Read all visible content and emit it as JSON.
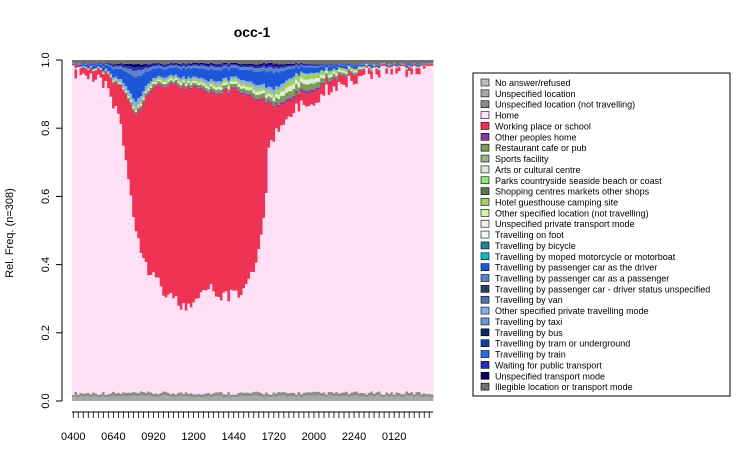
{
  "chart_data": {
    "type": "area",
    "stacked": true,
    "normalized": true,
    "title": "occ-1",
    "xlabel": "",
    "ylabel": "Rel. Freq. (n=308)",
    "ylim": [
      0,
      1
    ],
    "y_ticks": [
      "0.0",
      "0.2",
      "0.4",
      "0.6",
      "0.8",
      "1.0"
    ],
    "x_tick_labels": [
      "0400",
      "0640",
      "0920",
      "1200",
      "1440",
      "1720",
      "2000",
      "2240",
      "0120"
    ],
    "x_start": "0400",
    "x_interval_minutes": 10,
    "legend_position": "right",
    "legend": [
      {
        "label": "No answer/refused",
        "color": "#bdbdbd"
      },
      {
        "label": "Unspecified location",
        "color": "#a8a8a8"
      },
      {
        "label": "Unspecified location (not travelling)",
        "color": "#8c8c8c"
      },
      {
        "label": "Home",
        "color": "#ffdff5"
      },
      {
        "label": "Working place or school",
        "color": "#ee3355"
      },
      {
        "label": "Other peoples home",
        "color": "#8b3aa0"
      },
      {
        "label": "Restaurant cafe or pub",
        "color": "#7a9a5a"
      },
      {
        "label": "Sports facility",
        "color": "#9cb089"
      },
      {
        "label": "Arts or cultural centre",
        "color": "#dcecd0"
      },
      {
        "label": "Parks countryside seaside beach or coast",
        "color": "#90e87a"
      },
      {
        "label": "Shopping centres markets other shops",
        "color": "#5a7a4a"
      },
      {
        "label": "Hotel guesthouse camping site",
        "color": "#a0d060"
      },
      {
        "label": "Other specified location (not travelling)",
        "color": "#d8f0b0"
      },
      {
        "label": "Unspecified private transport mode",
        "color": "#e8f4f4"
      },
      {
        "label": "Travelling on foot",
        "color": "#f0fafa"
      },
      {
        "label": "Travelling by bicycle",
        "color": "#1a8a8a"
      },
      {
        "label": "Travelling by moped motorcycle or motorboat",
        "color": "#10b8c8"
      },
      {
        "label": "Travelling by passenger car as the driver",
        "color": "#1e56d8"
      },
      {
        "label": "Travelling by passenger car as a passenger",
        "color": "#6080c8"
      },
      {
        "label": "Travelling by passenger car - driver status unspecified",
        "color": "#2a4060"
      },
      {
        "label": "Travelling by van",
        "color": "#5070b0"
      },
      {
        "label": "Other specified private travelling mode",
        "color": "#88b0e8"
      },
      {
        "label": "Travelling by taxi",
        "color": "#6a98d8"
      },
      {
        "label": "Travelling by bus",
        "color": "#0a2a60"
      },
      {
        "label": "Travelling by tram or underground",
        "color": "#1040a0"
      },
      {
        "label": "Travelling by train",
        "color": "#2a6adf"
      },
      {
        "label": "Waiting for public transport",
        "color": "#2a2ab8"
      },
      {
        "label": "Unspecified transport mode",
        "color": "#00005a"
      },
      {
        "label": "Illegible location or transport mode",
        "color": "#707070"
      }
    ],
    "series": [
      {
        "name": "Unspecified location",
        "x": [
          "0400",
          "0640",
          "0920",
          "1200",
          "1440",
          "1720",
          "2000",
          "2240",
          "0120"
        ],
        "values": [
          0.02,
          0.02,
          0.01,
          0.01,
          0.01,
          0.01,
          0.015,
          0.015,
          0.015
        ]
      },
      {
        "name": "Home",
        "x": [
          "0400",
          "0640",
          "0920",
          "1200",
          "1440",
          "1720",
          "2000",
          "2240",
          "0120"
        ],
        "values": [
          0.95,
          0.88,
          0.16,
          0.18,
          0.22,
          0.8,
          0.92,
          0.95,
          0.96
        ]
      },
      {
        "name": "Working place or school",
        "x": [
          "0400",
          "0640",
          "0920",
          "1200",
          "1440",
          "1720",
          "2000",
          "2240",
          "0120"
        ],
        "values": [
          0.01,
          0.04,
          0.55,
          0.66,
          0.58,
          0.04,
          0.02,
          0.02,
          0.01
        ]
      },
      {
        "name": "Travelling by passenger car as the driver",
        "x": [
          "0400",
          "0640",
          "0920",
          "1200",
          "1440",
          "1720",
          "2000",
          "2240",
          "0120"
        ],
        "values": [
          0.01,
          0.05,
          0.1,
          0.05,
          0.06,
          0.08,
          0.02,
          0.01,
          0.01
        ]
      }
    ]
  }
}
